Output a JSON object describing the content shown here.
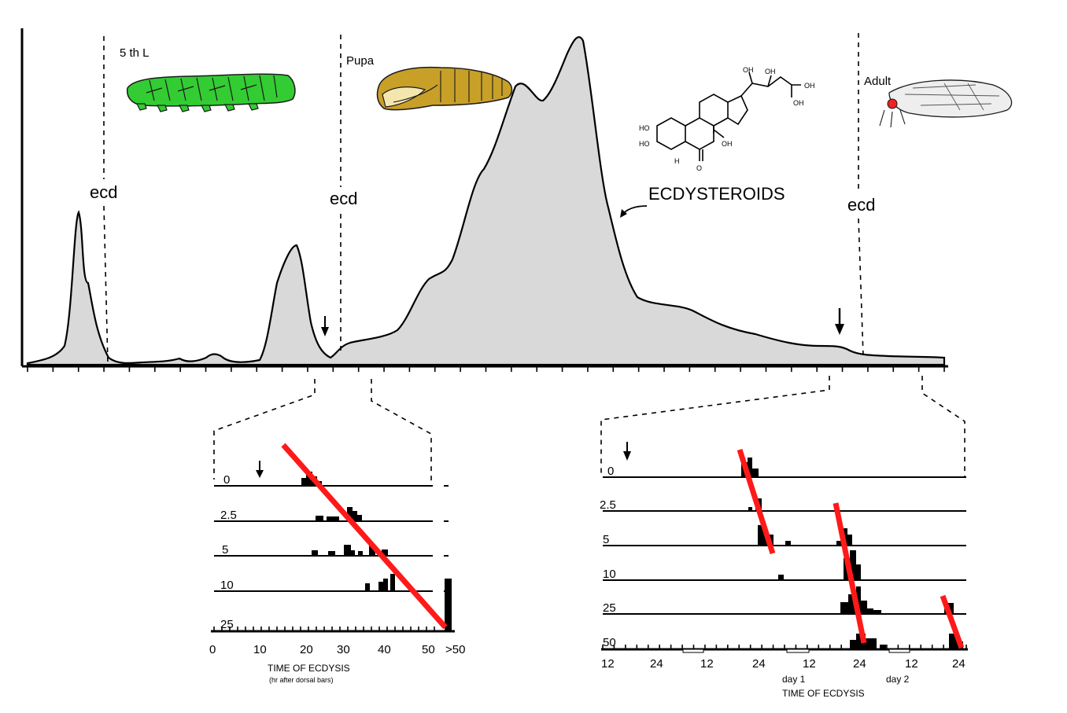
{
  "labels": {
    "stage_larva": "5 th L",
    "stage_pupa": "Pupa",
    "stage_adult": "Adult",
    "ecd": "ecd",
    "curve_label": "ECDYSTEROIDS"
  },
  "colors": {
    "curve_fill": "#d9d9d9",
    "larva": "#33cc33",
    "pupa": "#c8a028",
    "fit_line": "#ff1a1a",
    "adult_eye": "#ee2222"
  },
  "icons": {
    "larva": "caterpillar-illustration",
    "pupa": "pupa-illustration",
    "adult": "moth-illustration",
    "molecule": "ecdysone-structure",
    "arrow": "down-arrow-icon"
  },
  "molecule_labels": [
    "HO",
    "HO",
    "OH",
    "OH",
    "OH",
    "H",
    "O",
    "OH",
    "OH"
  ],
  "left_panel": {
    "rows": [
      "0",
      "2.5",
      "5",
      "10",
      "25"
    ],
    "x_ticks": [
      "0",
      "10",
      "20",
      "30",
      "40",
      "50",
      ">50"
    ],
    "xlabel": "TIME  OF  ECDYSIS",
    "xlabel_sub": "(hr after dorsal bars)"
  },
  "right_panel": {
    "rows": [
      "0",
      "2.5",
      "5",
      "10",
      "25",
      "50"
    ],
    "x_ticks": [
      "12",
      "24",
      "12",
      "24",
      "12",
      "24",
      "12",
      "24"
    ],
    "day_labels": [
      "day 1",
      "day 2"
    ],
    "xlabel": "TIME  OF  ECDYSIS"
  }
}
